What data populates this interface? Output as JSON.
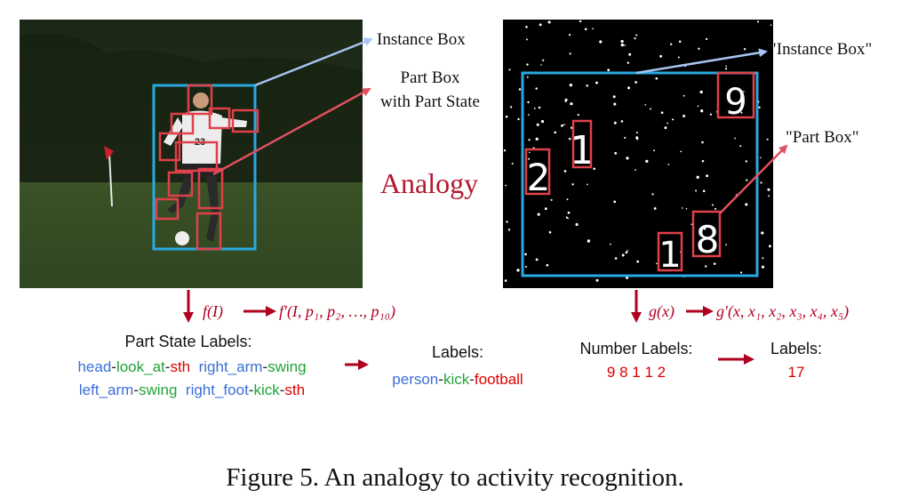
{
  "left_panel": {
    "instance_box_label": "Instance Box",
    "part_box_label_line1": "Part Box",
    "part_box_label_line2": "with Part State",
    "jersey_number": "23",
    "function_label": "f(I)",
    "function_output_label": "f′(I, p₁, p₂, …, p₁₀)",
    "part_state_title": "Part State Labels:",
    "part_state_lines": [
      [
        {
          "text": "head",
          "color": "blue"
        },
        {
          "text": "-",
          "color": "dark"
        },
        {
          "text": "look_at",
          "color": "green"
        },
        {
          "text": "-",
          "color": "dark"
        },
        {
          "text": "sth",
          "color": "red"
        },
        {
          "text": "  ",
          "color": "dark"
        },
        {
          "text": "right_arm",
          "color": "blue"
        },
        {
          "text": "-",
          "color": "dark"
        },
        {
          "text": "swing",
          "color": "green"
        }
      ],
      [
        {
          "text": "left_arm",
          "color": "blue"
        },
        {
          "text": "-",
          "color": "dark"
        },
        {
          "text": "swing",
          "color": "green"
        },
        {
          "text": "  ",
          "color": "dark"
        },
        {
          "text": "right_foot",
          "color": "blue"
        },
        {
          "text": "-",
          "color": "dark"
        },
        {
          "text": "kick",
          "color": "green"
        },
        {
          "text": "-",
          "color": "dark"
        },
        {
          "text": "sth",
          "color": "red"
        }
      ]
    ],
    "labels_title": "Labels:",
    "activity_label": [
      {
        "text": "person",
        "color": "blue"
      },
      {
        "text": "-",
        "color": "dark"
      },
      {
        "text": "kick",
        "color": "green"
      },
      {
        "text": "-",
        "color": "dark"
      },
      {
        "text": "football",
        "color": "red"
      }
    ]
  },
  "middle": {
    "analogy_label": "Analogy"
  },
  "right_panel": {
    "instance_box_label": "\"Instance Box\"",
    "part_box_label": "\"Part Box\"",
    "digits": [
      "9",
      "1",
      "2",
      "8",
      "1"
    ],
    "function_label": "g(x)",
    "function_output_label": "g′(x, x₁, x₂, x₃, x₄, x₅)",
    "number_labels_title": "Number Labels:",
    "number_labels_value": "9 8 1 1 2",
    "labels_title": "Labels:",
    "labels_value": "17"
  },
  "caption": "Figure 5. An analogy to activity recognition.",
  "colors": {
    "instance_box": "#29a9e0",
    "part_box": "#e0404a",
    "arrow_dark_red": "#b0001f",
    "blue": "#3a6fd8",
    "green": "#22a33a",
    "red": "#e00000",
    "dark": "#222222",
    "instance_arrow": "#a8c4f0",
    "part_arrow": "#e05060"
  }
}
